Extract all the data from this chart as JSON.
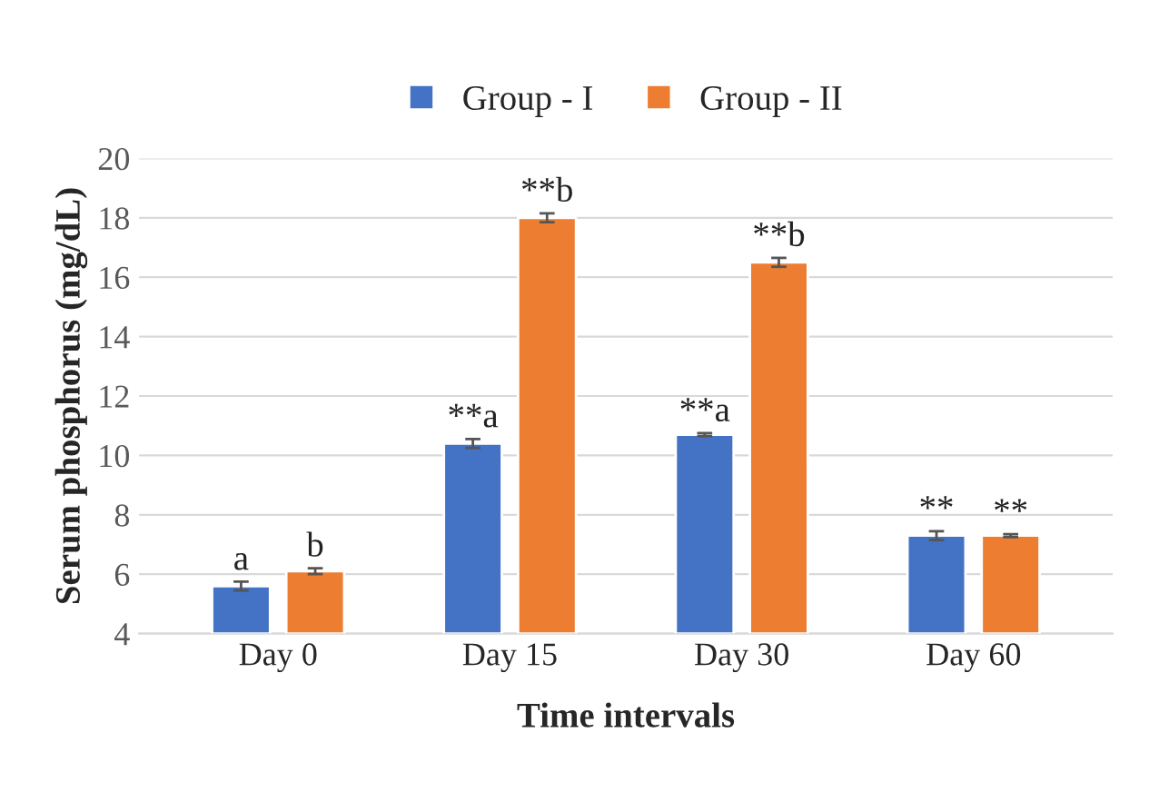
{
  "chart_data": {
    "type": "bar",
    "xlabel": "Time intervals",
    "ylabel": "Serum phosphorus (mg/dL)",
    "categories": [
      "Day 0",
      "Day 15",
      "Day 30",
      "Day 60"
    ],
    "series": [
      {
        "name": "Group - I",
        "color": "#4472c4",
        "values": [
          5.6,
          10.4,
          10.7,
          7.3
        ],
        "errors": [
          0.15,
          0.15,
          0.05,
          0.15
        ],
        "value_labels": [
          "a",
          "**a",
          "**a",
          "**"
        ]
      },
      {
        "name": "Group - II",
        "color": "#ed7d31",
        "values": [
          6.1,
          18.0,
          16.5,
          7.3
        ],
        "errors": [
          0.1,
          0.15,
          0.15,
          0.05
        ],
        "value_labels": [
          "b",
          "**b",
          "**b",
          "**"
        ]
      }
    ],
    "ylim": [
      4,
      20
    ],
    "yticks": [
      4,
      6,
      8,
      10,
      12,
      14,
      16,
      18,
      20
    ],
    "grid": "y",
    "legend": "top"
  }
}
